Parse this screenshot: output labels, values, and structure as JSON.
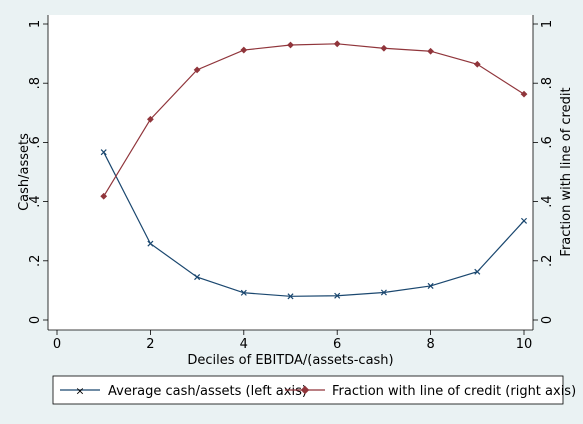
{
  "chart_data": {
    "type": "line",
    "title": "",
    "xlabel": "Deciles of EBITDA/(assets-cash)",
    "ylabel_left": "Cash/assets",
    "ylabel_right": "Fraction with line of credit",
    "xlim": [
      0,
      10
    ],
    "ylim_left": [
      0,
      1
    ],
    "ylim_right": [
      0,
      1
    ],
    "x_ticks": [
      0,
      2,
      4,
      6,
      8,
      10
    ],
    "x_tick_labels": [
      "0",
      "2",
      "4",
      "6",
      "8",
      "10"
    ],
    "y_ticks": [
      0,
      0.2,
      0.4,
      0.6,
      0.8,
      1
    ],
    "y_tick_labels": [
      "0",
      ".2",
      ".4",
      ".6",
      ".8",
      "1"
    ],
    "grid": false,
    "legend_position": "bottom",
    "x": [
      1,
      2,
      3,
      4,
      5,
      6,
      7,
      8,
      9,
      10
    ],
    "series": [
      {
        "name": "Average cash/assets (left axis)",
        "axis": "left",
        "marker": "x",
        "color": "#1a476f",
        "values": [
          0.567,
          0.258,
          0.145,
          0.092,
          0.08,
          0.082,
          0.093,
          0.115,
          0.163,
          0.335
        ]
      },
      {
        "name": "Fraction with line of credit (right axis)",
        "axis": "right",
        "marker": "diamond",
        "color": "#90353b",
        "values": [
          0.418,
          0.678,
          0.845,
          0.912,
          0.929,
          0.933,
          0.918,
          0.908,
          0.864,
          0.763
        ]
      }
    ]
  }
}
